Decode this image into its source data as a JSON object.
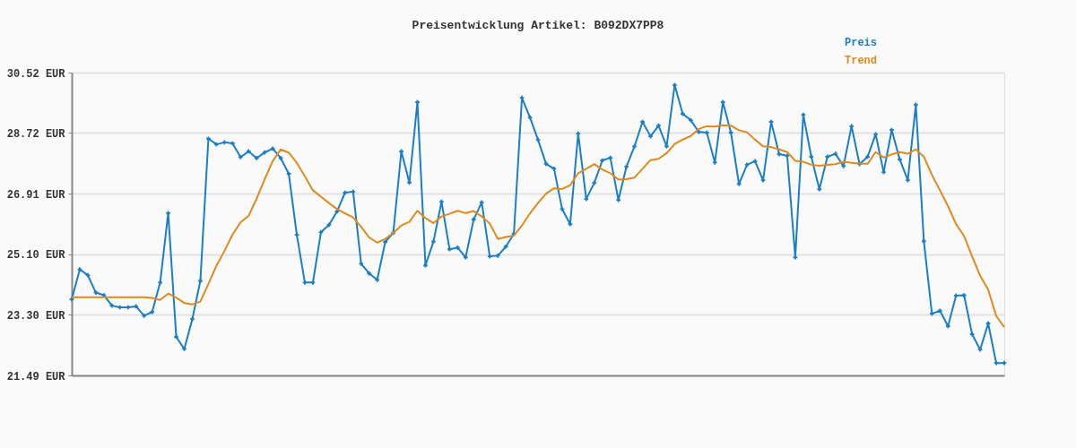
{
  "chart_data": {
    "type": "line",
    "title": "Preisentwicklung Artikel: B092DX7PP8",
    "categories": [
      null,
      null,
      null,
      null,
      null,
      null,
      null,
      null,
      null,
      null,
      null,
      null,
      null,
      null,
      null,
      null,
      null,
      null,
      null,
      null,
      null,
      null,
      null,
      null,
      null,
      null,
      null,
      null,
      null,
      null,
      null,
      null,
      null,
      null,
      null,
      null,
      null,
      null,
      null,
      null,
      null,
      null,
      null,
      null,
      null,
      null,
      null,
      null,
      null,
      null,
      null,
      null,
      null,
      null,
      null,
      null,
      null,
      null,
      null,
      null,
      null,
      null,
      null,
      null,
      null,
      null,
      null,
      null,
      null,
      null,
      null,
      null,
      null,
      null,
      null,
      null,
      null,
      null,
      null,
      null,
      null,
      null,
      null,
      null,
      null,
      null,
      null,
      null,
      null,
      null,
      null,
      null,
      null,
      null,
      null,
      null,
      null,
      null,
      null,
      null,
      null,
      null,
      null,
      null,
      null,
      null,
      null,
      null,
      null,
      null,
      null,
      null,
      null,
      null,
      null,
      null,
      null
    ],
    "series": [
      {
        "name": "Preis",
        "color": "#1a7fc8",
        "marker": "cross",
        "values": [
          23.76,
          24.65,
          24.48,
          23.96,
          23.88,
          23.57,
          23.52,
          23.52,
          23.55,
          23.27,
          23.38,
          24.26,
          26.33,
          22.64,
          22.28,
          23.17,
          24.31,
          28.55,
          28.38,
          28.44,
          28.41,
          28.0,
          28.17,
          27.97,
          28.14,
          28.25,
          27.97,
          27.5,
          25.68,
          24.26,
          24.26,
          25.76,
          25.98,
          26.38,
          26.94,
          26.97,
          24.82,
          24.53,
          24.34,
          25.47,
          25.74,
          28.17,
          27.24,
          29.64,
          24.77,
          25.48,
          26.67,
          25.25,
          25.3,
          25.01,
          26.14,
          26.65,
          25.04,
          25.06,
          25.33,
          25.71,
          29.77,
          29.18,
          28.52,
          27.8,
          27.65,
          26.45,
          26.0,
          28.7,
          26.75,
          27.23,
          27.9,
          27.98,
          26.72,
          27.71,
          28.32,
          29.05,
          28.62,
          28.94,
          28.32,
          30.15,
          29.29,
          29.1,
          28.75,
          28.73,
          27.84,
          29.64,
          28.73,
          27.2,
          27.77,
          27.88,
          27.31,
          29.05,
          28.09,
          28.04,
          25.01,
          29.26,
          28.01,
          27.04,
          28.01,
          28.1,
          27.73,
          28.92,
          27.79,
          28.01,
          28.68,
          27.55,
          28.81,
          27.93,
          27.31,
          29.56,
          25.49,
          23.33,
          23.42,
          22.96,
          23.87,
          23.88,
          22.72,
          22.26,
          23.04,
          21.86,
          21.86
        ]
      },
      {
        "name": "Trend",
        "color": "#e08a1e",
        "marker": "none",
        "values": [
          23.82,
          23.82,
          23.82,
          23.82,
          23.82,
          23.82,
          23.82,
          23.82,
          23.82,
          23.82,
          23.8,
          23.74,
          23.93,
          23.81,
          23.65,
          23.61,
          23.69,
          24.22,
          24.76,
          25.2,
          25.69,
          26.05,
          26.25,
          26.76,
          27.34,
          27.88,
          28.23,
          28.13,
          27.83,
          27.43,
          27.01,
          26.82,
          26.63,
          26.45,
          26.32,
          26.2,
          25.92,
          25.6,
          25.45,
          25.56,
          25.74,
          25.96,
          26.07,
          26.4,
          26.18,
          26.03,
          26.23,
          26.31,
          26.4,
          26.33,
          26.39,
          26.23,
          26.02,
          25.56,
          25.62,
          25.66,
          25.96,
          26.32,
          26.63,
          26.91,
          27.07,
          27.05,
          27.16,
          27.52,
          27.65,
          27.79,
          27.63,
          27.52,
          27.33,
          27.34,
          27.39,
          27.65,
          27.91,
          27.95,
          28.12,
          28.39,
          28.52,
          28.63,
          28.84,
          28.92,
          28.91,
          28.95,
          28.94,
          28.8,
          28.74,
          28.52,
          28.32,
          28.3,
          28.23,
          28.15,
          27.89,
          27.86,
          27.77,
          27.74,
          27.77,
          27.79,
          27.86,
          27.83,
          27.81,
          27.8,
          28.15,
          27.99,
          28.08,
          28.15,
          28.1,
          28.23,
          28.01,
          27.47,
          27.01,
          26.54,
          26.0,
          25.65,
          25.04,
          24.46,
          24.05,
          23.26,
          22.93
        ]
      }
    ],
    "ylim": [
      21.49,
      30.52
    ],
    "yticks": [
      {
        "value": 21.49,
        "label": "21.49 EUR"
      },
      {
        "value": 23.3,
        "label": "23.30 EUR"
      },
      {
        "value": 25.1,
        "label": "25.10 EUR"
      },
      {
        "value": 26.91,
        "label": "26.91 EUR"
      },
      {
        "value": 28.72,
        "label": "28.72 EUR"
      },
      {
        "value": 30.52,
        "label": "30.52 EUR"
      }
    ],
    "grid": "y",
    "legend": "top right",
    "tick_labels": "y",
    "line_style": "solid"
  }
}
